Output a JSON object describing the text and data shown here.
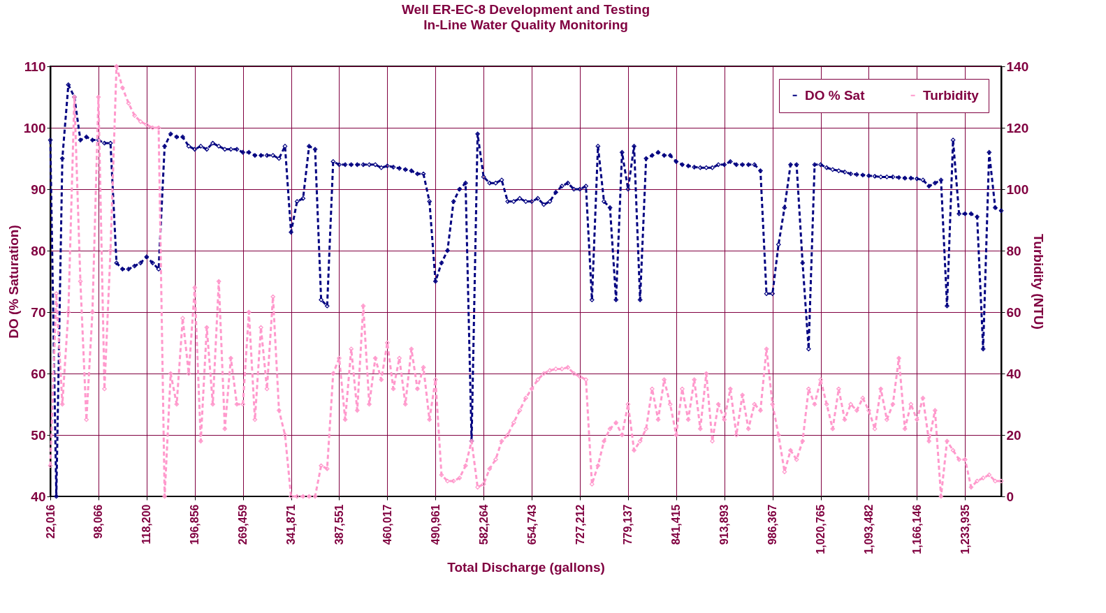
{
  "chart_data": {
    "type": "line",
    "title": "Well ER-EC-8 Development and Testing",
    "subtitle": "In-Line Water Quality Monitoring",
    "xlabel": "Total Discharge (gallons)",
    "ylabel": "DO (% Saturation)",
    "y2label": "Turbidity (NTU)",
    "categories": [
      "22,016",
      null,
      null,
      null,
      null,
      null,
      null,
      null,
      "98,066",
      null,
      null,
      null,
      null,
      null,
      null,
      null,
      "118,200",
      null,
      null,
      null,
      null,
      null,
      null,
      null,
      "196,856",
      null,
      null,
      null,
      null,
      null,
      null,
      null,
      "269,459",
      null,
      null,
      null,
      null,
      null,
      null,
      null,
      "341,871",
      null,
      null,
      null,
      null,
      null,
      null,
      null,
      "387,551",
      null,
      null,
      null,
      null,
      null,
      null,
      null,
      "460,017",
      null,
      null,
      null,
      null,
      null,
      null,
      null,
      "490,961",
      null,
      null,
      null,
      null,
      null,
      null,
      null,
      "582,264",
      null,
      null,
      null,
      null,
      null,
      null,
      null,
      "654,743",
      null,
      null,
      null,
      null,
      null,
      null,
      null,
      "727,212",
      null,
      null,
      null,
      null,
      null,
      null,
      null,
      "779,137",
      null,
      null,
      null,
      null,
      null,
      null,
      null,
      "841,415",
      null,
      null,
      null,
      null,
      null,
      null,
      null,
      "913,893",
      null,
      null,
      null,
      null,
      null,
      null,
      null,
      "986,367",
      null,
      null,
      null,
      null,
      null,
      null,
      null,
      "1,020,765",
      null,
      null,
      null,
      null,
      null,
      null,
      null,
      "1,093,482",
      null,
      null,
      null,
      null,
      null,
      null,
      null,
      "1,166,146",
      null,
      null,
      null,
      null,
      null,
      null,
      null,
      "1,233,935",
      null,
      null,
      null,
      null,
      null,
      null
    ],
    "series": [
      {
        "name": "DO % Sat",
        "color": "#000080",
        "values": [
          98,
          40,
          95,
          107,
          105,
          98,
          98.5,
          98,
          98,
          97.5,
          97.5,
          78,
          77,
          77,
          77.5,
          78,
          79,
          78,
          77,
          97,
          99,
          98.5,
          98.5,
          97,
          96.5,
          97,
          96.5,
          97.5,
          97,
          96.5,
          96.5,
          96.5,
          96,
          96,
          95.5,
          95.5,
          95.5,
          95.5,
          95,
          97,
          83,
          88,
          88.5,
          97,
          96.5,
          72,
          71,
          94.5,
          94,
          94,
          94,
          94,
          94,
          94,
          94,
          93.5,
          93.8,
          93.6,
          93.4,
          93.2,
          93,
          92.5,
          92.5,
          88,
          75,
          78,
          80,
          88,
          90,
          91,
          49,
          99,
          92,
          91,
          91,
          91.5,
          88,
          88,
          88.5,
          88,
          88,
          88.5,
          87.5,
          88,
          89.5,
          90.5,
          91,
          90,
          90,
          90.5,
          72,
          97,
          88,
          87,
          72,
          96,
          90,
          97,
          72,
          95,
          95.5,
          96,
          95.5,
          95.5,
          94.5,
          94,
          93.8,
          93.6,
          93.5,
          93.5,
          93.5,
          94,
          94,
          94.5,
          94,
          94,
          94,
          94,
          93,
          73,
          73,
          81,
          87,
          94,
          94,
          78,
          64,
          94,
          94,
          93.5,
          93.2,
          93,
          92.8,
          92.5,
          92.4,
          92.3,
          92.2,
          92.1,
          92,
          92,
          92,
          91.9,
          91.8,
          91.8,
          91.7,
          91.5,
          90.5,
          91,
          91.5,
          71,
          98,
          86,
          86,
          86,
          85.5,
          64,
          96,
          87,
          86.5
        ]
      },
      {
        "name": "Turbidity",
        "color": "#ff99cc",
        "axis": "y2",
        "values": [
          10,
          66,
          30,
          60,
          130,
          70,
          25,
          60,
          130,
          35,
          80,
          140,
          133,
          128,
          124,
          122,
          121,
          120,
          120,
          0,
          40,
          30,
          58,
          40,
          68,
          18,
          55,
          30,
          70,
          22,
          45,
          30,
          30,
          60,
          25,
          55,
          35,
          65,
          28,
          20,
          0,
          0,
          0,
          0,
          0,
          10,
          9,
          40,
          45,
          25,
          48,
          28,
          62,
          30,
          45,
          38,
          50,
          35,
          45,
          30,
          48,
          35,
          42,
          25,
          38,
          7,
          5,
          5,
          6,
          10,
          18,
          3,
          4,
          9,
          12,
          18,
          20,
          24,
          28,
          32,
          35,
          38,
          40,
          41,
          41.5,
          41.5,
          42,
          40,
          39,
          38,
          4,
          10,
          18,
          22,
          24,
          20,
          30,
          15,
          18,
          22,
          35,
          25,
          38,
          30,
          20,
          35,
          25,
          38,
          22,
          40,
          18,
          30,
          25,
          35,
          20,
          33,
          22,
          30,
          28,
          48,
          30,
          20,
          8,
          15,
          12,
          18,
          35,
          30,
          38,
          30,
          22,
          35,
          25,
          30,
          28,
          32,
          28,
          22,
          35,
          25,
          30,
          45,
          22,
          30,
          25,
          32,
          18,
          28,
          0,
          18,
          15,
          12,
          12,
          3,
          5,
          6,
          7,
          5,
          5
        ]
      }
    ],
    "ylim": [
      40,
      110
    ],
    "yticks": [
      40,
      50,
      60,
      70,
      80,
      90,
      100,
      110
    ],
    "y2lim": [
      0,
      140
    ],
    "y2ticks": [
      0,
      20,
      40,
      60,
      80,
      100,
      120,
      140
    ],
    "grid": true,
    "legend": "top right",
    "marker": "diamond",
    "line_style": "dashed"
  }
}
